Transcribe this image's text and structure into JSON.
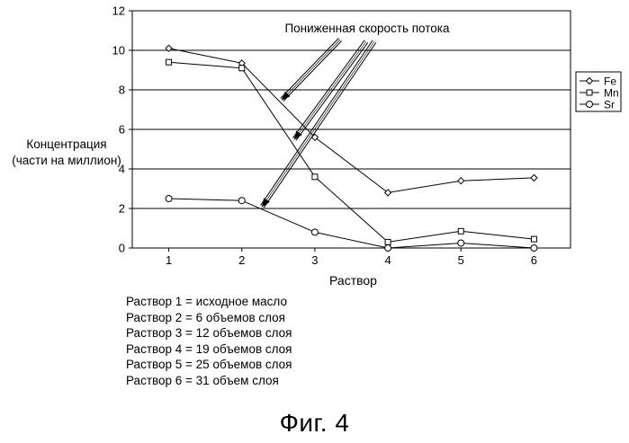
{
  "chart_data": {
    "type": "line",
    "x": [
      1,
      2,
      3,
      4,
      5,
      6
    ],
    "xticks": [
      "1",
      "2",
      "3",
      "4",
      "5",
      "6"
    ],
    "yticks": [
      "0",
      "2",
      "4",
      "6",
      "8",
      "10",
      "12"
    ],
    "ylim": [
      0,
      12
    ],
    "xlim": [
      0.5,
      6.5
    ],
    "xlabel": "Раствор",
    "ylabel_lines": [
      "Концентрация",
      "(части на миллион)"
    ],
    "grid": "horizontal",
    "legend_position": "right",
    "series": [
      {
        "name": "Fe",
        "marker": "diamond",
        "values": [
          10.1,
          9.35,
          5.6,
          2.8,
          3.4,
          3.55
        ]
      },
      {
        "name": "Mn",
        "marker": "square",
        "values": [
          9.4,
          9.1,
          3.6,
          0.3,
          0.85,
          0.45
        ]
      },
      {
        "name": "Sr",
        "marker": "circle",
        "values": [
          2.5,
          2.4,
          0.8,
          0.0,
          0.25,
          0.0
        ]
      }
    ],
    "annotation": {
      "text": "Пониженная скорость потока",
      "arrow_targets": [
        {
          "x": 2.55,
          "y": 7.5
        },
        {
          "x": 2.72,
          "y": 5.5
        },
        {
          "x": 2.28,
          "y": 2.1
        }
      ]
    }
  },
  "notes": [
    "Раствор 1 = исходное масло",
    "Раствор 2 = 6 объемов слоя",
    "Раствор 3 = 12 объемов слоя",
    "Раствор 4 = 19 объемов слоя",
    "Раствор 5 = 25 объемов слоя",
    "Раствор 6 = 31 объем слоя"
  ],
  "caption": "Фиг. 4"
}
